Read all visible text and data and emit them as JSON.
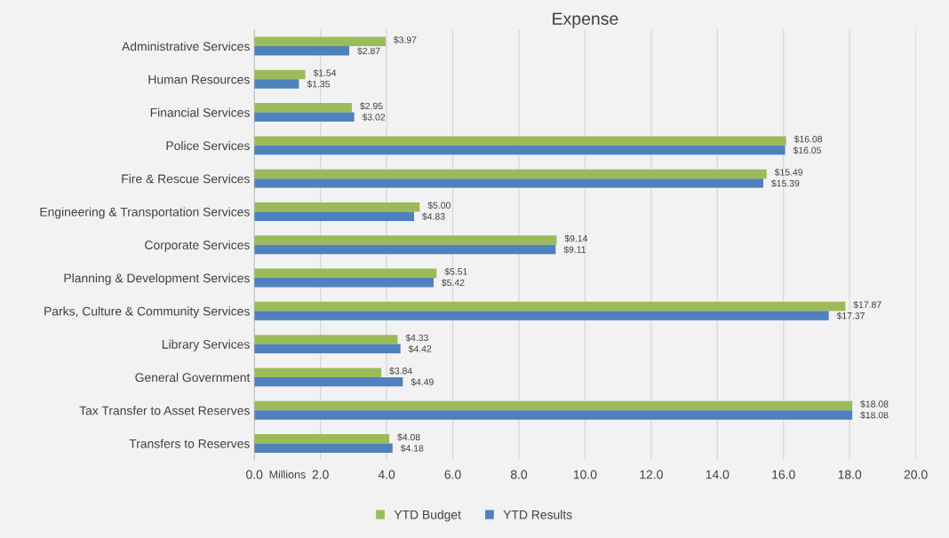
{
  "chart_data": {
    "type": "bar",
    "orientation": "horizontal",
    "title": "Expense",
    "xlabel": "Millions",
    "categories": [
      "Administrative Services",
      "Human Resources",
      "Financial Services",
      "Police Services",
      "Fire & Rescue Services",
      "Engineering & Transportation Services",
      "Corporate Services",
      "Planning & Development Services",
      "Parks, Culture & Community Services",
      "Library Services",
      "General Government",
      "Tax Transfer to Asset Reserves",
      "Transfers to Reserves"
    ],
    "series": [
      {
        "name": "YTD Budget",
        "color": "#9bbb59",
        "values": [
          3.97,
          1.54,
          2.95,
          16.08,
          15.49,
          5.0,
          9.14,
          5.51,
          17.87,
          4.33,
          3.84,
          18.08,
          4.08
        ],
        "value_labels": [
          "$3.97",
          "$1.54",
          "$2.95",
          "$16.08",
          "$15.49",
          "$5.00",
          "$9.14",
          "$5.51",
          "$17.87",
          "$4.33",
          "$3.84",
          "$18.08",
          "$4.08"
        ]
      },
      {
        "name": "YTD Results",
        "color": "#4f81bd",
        "values": [
          2.87,
          1.35,
          3.02,
          16.05,
          15.39,
          4.83,
          9.11,
          5.42,
          17.37,
          4.42,
          4.49,
          18.08,
          4.18
        ],
        "value_labels": [
          "$2.87",
          "$1.35",
          "$3.02",
          "$16.05",
          "$15.39",
          "$4.83",
          "$9.11",
          "$5.42",
          "$17.37",
          "$4.42",
          "$4.49",
          "$18.08",
          "$4.18"
        ]
      }
    ],
    "xlim": [
      0,
      20
    ],
    "xticks": [
      {
        "value": 0,
        "label": "0.0"
      },
      {
        "value": 2,
        "label": "2.0"
      },
      {
        "value": 4,
        "label": "4.0"
      },
      {
        "value": 6,
        "label": "6.0"
      },
      {
        "value": 8,
        "label": "8.0"
      },
      {
        "value": 10,
        "label": "10.0"
      },
      {
        "value": 12,
        "label": "12.0"
      },
      {
        "value": 14,
        "label": "14.0"
      },
      {
        "value": 16,
        "label": "16.0"
      },
      {
        "value": 18,
        "label": "18.0"
      },
      {
        "value": 20,
        "label": "20.0"
      }
    ],
    "grid": "x",
    "legend": "bottom"
  }
}
